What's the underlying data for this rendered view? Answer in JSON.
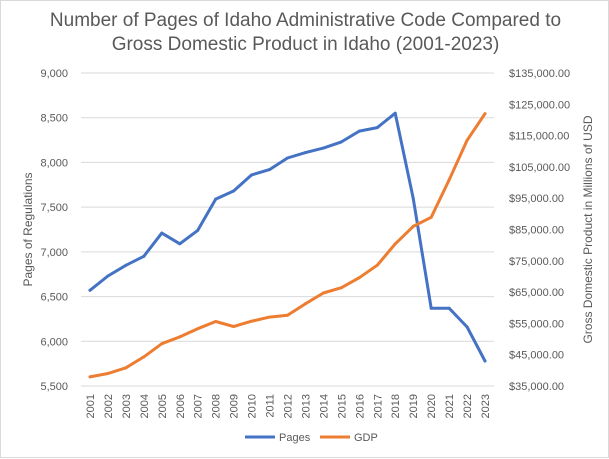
{
  "chart_data": {
    "type": "line",
    "title_lines": [
      "Number of Pages of Idaho Administrative Code Compared to",
      "Gross Domestic Product in Idaho (2001-2023)"
    ],
    "x": [
      "2001",
      "2002",
      "2003",
      "2004",
      "2005",
      "2006",
      "2007",
      "2008",
      "2009",
      "2010",
      "2011",
      "2012",
      "2013",
      "2014",
      "2015",
      "2016",
      "2017",
      "2018",
      "2019",
      "2020",
      "2021",
      "2022",
      "2023"
    ],
    "y_left": {
      "label": "Pages of Regulations",
      "ylim": [
        5500,
        9000
      ],
      "ticks": [
        5500,
        6000,
        6500,
        7000,
        7500,
        8000,
        8500,
        9000
      ],
      "tick_labels": [
        "5,500",
        "6,000",
        "6,500",
        "7,000",
        "7,500",
        "8,000",
        "8,500",
        "9,000"
      ]
    },
    "y_right": {
      "label": "Gross Domestic Product in Millions of USD",
      "ylim": [
        35000,
        135000
      ],
      "ticks": [
        35000,
        45000,
        55000,
        65000,
        75000,
        85000,
        95000,
        105000,
        115000,
        125000,
        135000
      ],
      "tick_labels": [
        "$35,000.00",
        "$45,000.00",
        "$55,000.00",
        "$65,000.00",
        "$75,000.00",
        "$85,000.00",
        "$95,000.00",
        "$105,000.00",
        "$115,000.00",
        "$125,000.00",
        "$135,000.00"
      ]
    },
    "series": [
      {
        "name": "Pages",
        "axis": "left",
        "color": "#4472c4",
        "values": [
          6570,
          6730,
          6850,
          6950,
          7210,
          7090,
          7240,
          7590,
          7680,
          7860,
          7920,
          8050,
          8110,
          8160,
          8230,
          8350,
          8390,
          8550,
          7600,
          6370,
          6370,
          6160,
          5780
        ]
      },
      {
        "name": "GDP",
        "axis": "right",
        "color": "#ed7d31",
        "values": [
          37900,
          39000,
          40800,
          44300,
          48500,
          50700,
          53300,
          55600,
          54000,
          55700,
          57000,
          57600,
          61300,
          64700,
          66400,
          69600,
          73600,
          80400,
          86000,
          88900,
          100800,
          113500,
          122000
        ]
      }
    ],
    "grid": true,
    "legend": "bottom-center"
  }
}
